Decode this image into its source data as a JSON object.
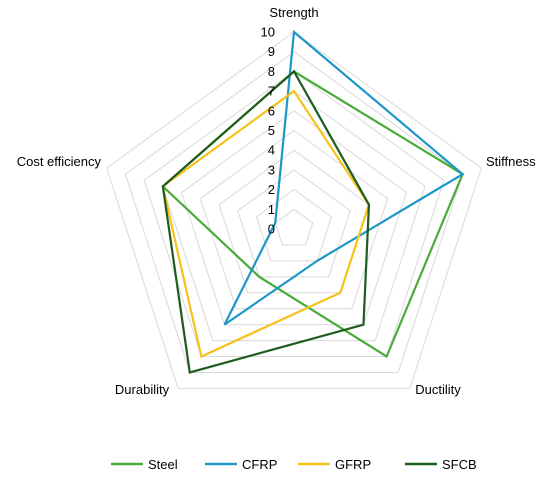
{
  "chart_data": {
    "type": "radar",
    "axes": [
      "Strength",
      "Stiffness",
      "Ductility",
      "Durability",
      "Cost efficiency"
    ],
    "rlim": [
      0,
      10
    ],
    "ticks": [
      "0",
      "1",
      "2",
      "3",
      "4",
      "5",
      "6",
      "7",
      "8",
      "9",
      "10"
    ],
    "grid": true,
    "legend_position": "bottom",
    "series": [
      {
        "name": "Steel",
        "values": [
          8,
          9,
          8,
          3,
          7
        ],
        "color": "#4aab3b"
      },
      {
        "name": "CFRP",
        "values": [
          10,
          9,
          2,
          6,
          1
        ],
        "color": "#1e96c8"
      },
      {
        "name": "GFRP",
        "values": [
          7,
          4,
          4,
          8,
          7
        ],
        "color": "#f5c21b"
      },
      {
        "name": "SFCB",
        "values": [
          8,
          4,
          6,
          9,
          7
        ],
        "color": "#1e5c1e"
      }
    ]
  }
}
